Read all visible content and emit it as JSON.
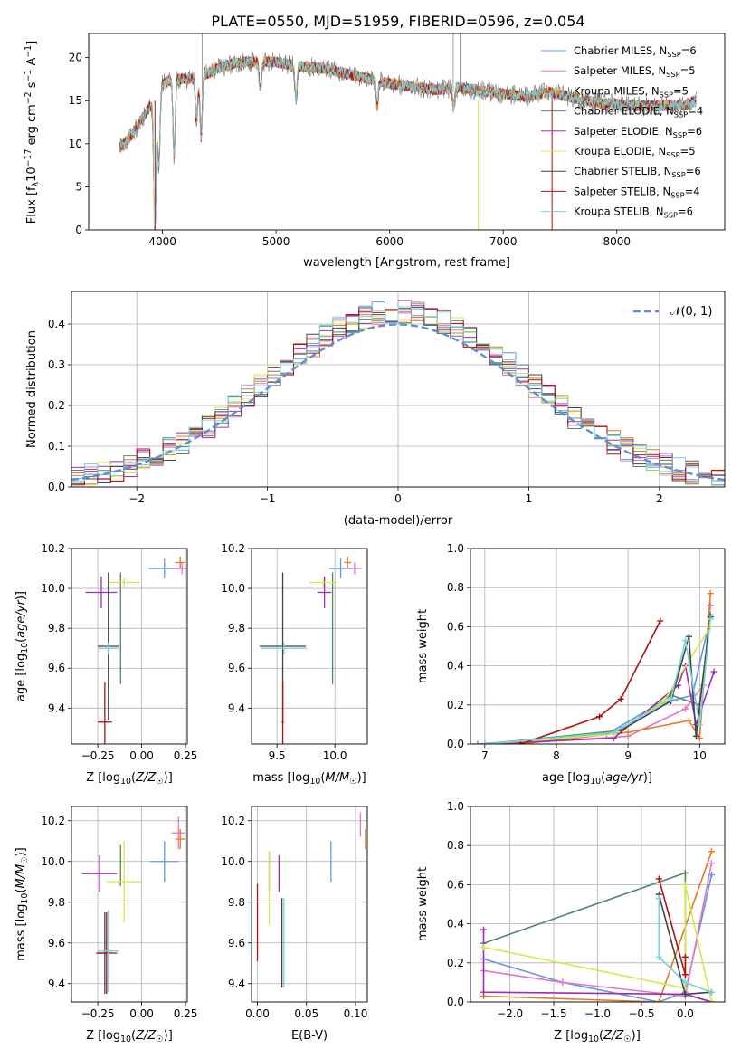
{
  "colors": {
    "Chabrier MILES": "#6495ed",
    "Salpeter MILES": "#e377c2",
    "Kroupa MILES": "#e07b27",
    "Chabrier ELODIE": "#4f8a5f",
    "Salpeter ELODIE": "#9b30b4",
    "Kroupa ELODIE": "#d4e84a",
    "Chabrier STELIB": "#444444",
    "Salpeter STELIB": "#b01010",
    "Kroupa STELIB": "#74d3dc",
    "normal": "#5b8fd6"
  },
  "chart_data": [
    {
      "id": "spectrum",
      "type": "line",
      "title": "PLATE=0550, MJD=51959, FIBERID=0596, z=0.054",
      "xlabel": "wavelength [Angstrom, rest frame]",
      "ylabel": "Flux [f_λ10^-17 erg cm^-2 s^-1 A^-1]",
      "xlim": [
        3350,
        8950
      ],
      "ylim": [
        0,
        22.8
      ],
      "xticks": [
        4000,
        5000,
        6000,
        7000,
        8000
      ],
      "yticks": [
        0,
        5,
        10,
        15,
        20
      ],
      "grid": false,
      "legend_position": "top-right",
      "legend": [
        {
          "name": "Chabrier MILES, N_SSP=6"
        },
        {
          "name": "Salpeter MILES, N_SSP=5"
        },
        {
          "name": "Kroupa MILES, N_SSP=5"
        },
        {
          "name": "Chabrier ELODIE, N_SSP=4"
        },
        {
          "name": "Salpeter ELODIE, N_SSP=6"
        },
        {
          "name": "Kroupa ELODIE, N_SSP=5"
        },
        {
          "name": "Chabrier STELIB, N_SSP=6"
        },
        {
          "name": "Salpeter STELIB, N_SSP=4"
        },
        {
          "name": "Kroupa STELIB, N_SSP=6"
        }
      ],
      "continuum": {
        "x": [
          3620,
          3700,
          3800,
          3900,
          3950,
          4000,
          4100,
          4200,
          4300,
          4400,
          4500,
          4600,
          4700,
          4800,
          4900,
          5000,
          5200,
          5400,
          5600,
          5800,
          6000,
          6200,
          6400,
          6600,
          6800,
          7000,
          7200,
          7400,
          7600,
          7800,
          8000,
          8200,
          8400,
          8600,
          8700
        ],
        "y": [
          9.5,
          10.5,
          12.5,
          14.5,
          14.5,
          17.0,
          17.5,
          17.5,
          17.5,
          18.2,
          18.8,
          19.2,
          19.5,
          19.5,
          19.5,
          19.5,
          19.0,
          18.8,
          18.2,
          17.6,
          17.0,
          16.6,
          16.3,
          16.5,
          16.2,
          15.8,
          15.5,
          16.0,
          15.4,
          14.8,
          14.6,
          14.4,
          14.4,
          14.5,
          15.0
        ]
      },
      "absorption_lines": [
        {
          "x": 3933,
          "depth": 14.5
        },
        {
          "x": 3968,
          "depth": 8.0
        },
        {
          "x": 4102,
          "depth": 9.0
        },
        {
          "x": 4300,
          "depth": 5.0
        },
        {
          "x": 4340,
          "depth": 7.0
        },
        {
          "x": 4861,
          "depth": 3.5
        },
        {
          "x": 5175,
          "depth": 4.0
        },
        {
          "x": 5890,
          "depth": 3.0
        },
        {
          "x": 6563,
          "depth": 2.0
        }
      ]
    },
    {
      "id": "residuals",
      "type": "step",
      "xlabel": "(data-model)/error",
      "ylabel": "Normed distribution",
      "xlim": [
        -2.5,
        2.5
      ],
      "ylim": [
        0,
        0.48
      ],
      "xticks": [
        -2,
        -1,
        0,
        1,
        2
      ],
      "yticks": [
        0.0,
        0.1,
        0.2,
        0.3,
        0.4
      ],
      "grid": true,
      "legend_position": "top-right",
      "legend": [
        {
          "name": "𝒩(0, 1)"
        }
      ],
      "bin_width": 0.1
    },
    {
      "id": "age-vs-Z",
      "type": "errorbar",
      "xlabel": "Z [log10(Z/Z☉)]",
      "ylabel": "age [log10(age/yr)]",
      "xlim": [
        -0.4,
        0.26
      ],
      "ylim": [
        9.22,
        10.2
      ],
      "xticks": [
        -0.25,
        0.0,
        0.25
      ],
      "yticks": [
        9.4,
        9.6,
        9.8,
        10.0,
        10.2
      ],
      "grid": true,
      "points": [
        {
          "model": "Chabrier MILES",
          "x": 0.13,
          "y": 10.1,
          "xerr": 0.09,
          "yerr": 0.05
        },
        {
          "model": "Salpeter MILES",
          "x": 0.23,
          "y": 10.1,
          "xerr": 0.05,
          "yerr": 0.03
        },
        {
          "model": "Kroupa MILES",
          "x": 0.22,
          "y": 10.13,
          "xerr": 0.03,
          "yerr": 0.03
        },
        {
          "model": "Chabrier ELODIE",
          "x": -0.12,
          "y": 9.8,
          "xerr": 0.0,
          "yerr": 0.28
        },
        {
          "model": "Salpeter ELODIE",
          "x": -0.23,
          "y": 9.98,
          "xerr": 0.09,
          "yerr": 0.08
        },
        {
          "model": "Kroupa ELODIE",
          "x": -0.1,
          "y": 10.03,
          "xerr": 0.09,
          "yerr": 0.02
        },
        {
          "model": "Chabrier STELIB",
          "x": -0.19,
          "y": 9.71,
          "xerr": 0.06,
          "yerr": 0.37
        },
        {
          "model": "Salpeter STELIB",
          "x": -0.21,
          "y": 9.33,
          "xerr": 0.04,
          "yerr": 0.2
        },
        {
          "model": "Kroupa STELIB",
          "x": -0.19,
          "y": 9.7,
          "xerr": 0.06,
          "yerr": 0.03
        }
      ]
    },
    {
      "id": "age-vs-mass",
      "type": "errorbar",
      "xlabel": "mass [log10(M/M☉)]",
      "xlim": [
        9.28,
        10.28
      ],
      "ylim": [
        9.22,
        10.2
      ],
      "xticks": [
        9.5,
        10.0
      ],
      "yticks": [
        9.4,
        9.6,
        9.8,
        10.0,
        10.2
      ],
      "grid": true,
      "points": [
        {
          "model": "Chabrier MILES",
          "x": 10.05,
          "y": 10.1,
          "xerr": 0.1,
          "yerr": 0.05
        },
        {
          "model": "Salpeter MILES",
          "x": 10.17,
          "y": 10.1,
          "xerr": 0.06,
          "yerr": 0.03
        },
        {
          "model": "Kroupa MILES",
          "x": 10.11,
          "y": 10.13,
          "xerr": 0.03,
          "yerr": 0.03
        },
        {
          "model": "Chabrier ELODIE",
          "x": 9.98,
          "y": 9.8,
          "xerr": 0.0,
          "yerr": 0.28
        },
        {
          "model": "Salpeter ELODIE",
          "x": 9.91,
          "y": 9.98,
          "xerr": 0.06,
          "yerr": 0.08
        },
        {
          "model": "Kroupa ELODIE",
          "x": 9.9,
          "y": 10.03,
          "xerr": 0.12,
          "yerr": 0.02
        },
        {
          "model": "Chabrier STELIB",
          "x": 9.55,
          "y": 9.71,
          "xerr": 0.2,
          "yerr": 0.37
        },
        {
          "model": "Salpeter STELIB",
          "x": 9.55,
          "y": 9.33,
          "xerr": 0.01,
          "yerr": 0.2
        },
        {
          "model": "Kroupa STELIB",
          "x": 9.56,
          "y": 9.7,
          "xerr": 0.2,
          "yerr": 0.03
        }
      ]
    },
    {
      "id": "weight-vs-age",
      "type": "line",
      "xlabel": "age [log10(age/yr)]",
      "ylabel": "mass weight",
      "xlim": [
        6.8,
        10.35
      ],
      "ylim": [
        0,
        1.0
      ],
      "xticks": [
        7,
        8,
        9,
        10
      ],
      "yticks": [
        0.0,
        0.2,
        0.4,
        0.6,
        0.8,
        1.0
      ],
      "grid": true,
      "series": [
        {
          "model": "Chabrier MILES",
          "points": [
            [
              6.9,
              0.0
            ],
            [
              8.7,
              0.05
            ],
            [
              9.4,
              0.2
            ],
            [
              9.9,
              0.25
            ],
            [
              10.15,
              0.65
            ]
          ]
        },
        {
          "model": "Salpeter MILES",
          "points": [
            [
              7.3,
              0.0
            ],
            [
              9.0,
              0.04
            ],
            [
              9.8,
              0.18
            ],
            [
              10.05,
              0.3
            ],
            [
              10.15,
              0.71
            ]
          ]
        },
        {
          "model": "Kroupa MILES",
          "points": [
            [
              7.5,
              0.0
            ],
            [
              9.0,
              0.06
            ],
            [
              9.85,
              0.12
            ],
            [
              10.0,
              0.03
            ],
            [
              10.15,
              0.77
            ]
          ]
        },
        {
          "model": "Chabrier ELODIE",
          "points": [
            [
              7.0,
              0.0
            ],
            [
              8.9,
              0.07
            ],
            [
              9.6,
              0.25
            ],
            [
              10.0,
              0.2
            ],
            [
              10.15,
              0.66
            ]
          ]
        },
        {
          "model": "Salpeter ELODIE",
          "points": [
            [
              7.0,
              0.0
            ],
            [
              8.8,
              0.03
            ],
            [
              9.7,
              0.3
            ],
            [
              9.8,
              0.4
            ],
            [
              9.95,
              0.1
            ],
            [
              10.2,
              0.37
            ]
          ]
        },
        {
          "model": "Kroupa ELODIE",
          "points": [
            [
              7.0,
              0.0
            ],
            [
              8.8,
              0.05
            ],
            [
              9.5,
              0.22
            ],
            [
              10.15,
              0.6
            ]
          ]
        },
        {
          "model": "Chabrier STELIB",
          "points": [
            [
              8.9,
              0.07
            ],
            [
              9.6,
              0.22
            ],
            [
              9.85,
              0.55
            ],
            [
              9.95,
              0.04
            ],
            [
              10.15,
              0.65
            ]
          ]
        },
        {
          "model": "Salpeter STELIB",
          "points": [
            [
              7.5,
              0.0
            ],
            [
              8.6,
              0.14
            ],
            [
              8.9,
              0.23
            ],
            [
              9.45,
              0.63
            ]
          ]
        },
        {
          "model": "Kroupa STELIB",
          "points": [
            [
              7.0,
              0.0
            ],
            [
              8.8,
              0.06
            ],
            [
              9.6,
              0.23
            ],
            [
              9.8,
              0.53
            ],
            [
              10.0,
              0.1
            ],
            [
              10.15,
              0.64
            ]
          ]
        }
      ]
    },
    {
      "id": "mass-vs-Z",
      "type": "errorbar",
      "xlabel": "Z [log10(Z/Z☉)]",
      "ylabel": "mass [log10(M/M☉)]",
      "xlim": [
        -0.4,
        0.26
      ],
      "ylim": [
        9.31,
        10.27
      ],
      "xticks": [
        -0.25,
        0.0,
        0.25
      ],
      "yticks": [
        9.4,
        9.6,
        9.8,
        10.0,
        10.2
      ],
      "grid": true,
      "points": [
        {
          "model": "Chabrier MILES",
          "x": 0.13,
          "y": 10.0,
          "xerr": 0.08,
          "yerr": 0.1
        },
        {
          "model": "Salpeter MILES",
          "x": 0.21,
          "y": 10.14,
          "xerr": 0.04,
          "yerr": 0.08
        },
        {
          "model": "Kroupa MILES",
          "x": 0.22,
          "y": 10.11,
          "xerr": 0.03,
          "yerr": 0.05
        },
        {
          "model": "Chabrier ELODIE",
          "x": -0.12,
          "y": 9.98,
          "xerr": 0.0,
          "yerr": 0.1
        },
        {
          "model": "Salpeter ELODIE",
          "x": -0.24,
          "y": 9.94,
          "xerr": 0.1,
          "yerr": 0.09
        },
        {
          "model": "Kroupa ELODIE",
          "x": -0.1,
          "y": 9.9,
          "xerr": 0.1,
          "yerr": 0.2
        },
        {
          "model": "Chabrier STELIB",
          "x": -0.21,
          "y": 9.55,
          "xerr": 0.04,
          "yerr": 0.2
        },
        {
          "model": "Salpeter STELIB",
          "x": -0.2,
          "y": 9.55,
          "xerr": 0.06,
          "yerr": 0.2
        },
        {
          "model": "Kroupa STELIB",
          "x": -0.19,
          "y": 9.56,
          "xerr": 0.06,
          "yerr": 0.2
        }
      ]
    },
    {
      "id": "mass-vs-EBV",
      "type": "errorbar",
      "xlabel": "E(B-V)",
      "xlim": [
        -0.006,
        0.112
      ],
      "ylim": [
        9.31,
        10.27
      ],
      "xticks": [
        0.0,
        0.05,
        0.1
      ],
      "yticks": [
        9.4,
        9.6,
        9.8,
        10.0,
        10.2
      ],
      "grid": true,
      "points": [
        {
          "model": "Chabrier MILES",
          "x": 0.075,
          "y": 10.0,
          "yerr": 0.1
        },
        {
          "model": "Salpeter MILES",
          "x": 0.105,
          "y": 10.18,
          "yerr": 0.06
        },
        {
          "model": "Kroupa MILES",
          "x": 0.11,
          "y": 10.11,
          "yerr": 0.05
        },
        {
          "model": "Chabrier ELODIE",
          "x": 0.012,
          "y": 9.95,
          "yerr": 0.1
        },
        {
          "model": "Salpeter ELODIE",
          "x": 0.022,
          "y": 9.94,
          "yerr": 0.09
        },
        {
          "model": "Kroupa ELODIE",
          "x": 0.012,
          "y": 9.87,
          "yerr": 0.18
        },
        {
          "model": "Chabrier STELIB",
          "x": 0.025,
          "y": 9.6,
          "yerr": 0.22
        },
        {
          "model": "Salpeter STELIB",
          "x": 0.0,
          "y": 9.7,
          "yerr": 0.19
        },
        {
          "model": "Kroupa STELIB",
          "x": 0.027,
          "y": 9.6,
          "yerr": 0.22
        }
      ]
    },
    {
      "id": "weight-vs-Z",
      "type": "line",
      "xlabel": "Z [log10(Z/Z☉)]",
      "ylabel": "mass weight",
      "xlim": [
        -2.45,
        0.45
      ],
      "ylim": [
        0,
        1.0
      ],
      "xticks": [
        -2.0,
        -1.5,
        -1.0,
        -0.5,
        0.0
      ],
      "yticks": [
        0.0,
        0.2,
        0.4,
        0.6,
        0.8,
        1.0
      ],
      "grid": true,
      "series": [
        {
          "model": "Chabrier MILES",
          "points": [
            [
              -2.3,
              0.22
            ],
            [
              -1.4,
              0.1
            ],
            [
              -0.3,
              0.0
            ],
            [
              0.0,
              0.05
            ],
            [
              0.3,
              0.65
            ]
          ]
        },
        {
          "model": "Salpeter MILES",
          "points": [
            [
              -2.3,
              0.16
            ],
            [
              -1.4,
              0.1
            ],
            [
              0.0,
              0.03
            ],
            [
              0.3,
              0.71
            ]
          ]
        },
        {
          "model": "Kroupa MILES",
          "points": [
            [
              -2.3,
              0.03
            ],
            [
              -0.3,
              0.0
            ],
            [
              0.3,
              0.77
            ]
          ]
        },
        {
          "model": "Chabrier ELODIE",
          "points": [
            [
              -2.3,
              0.3
            ],
            [
              0.0,
              0.66
            ],
            [
              0.0,
              0.04
            ],
            [
              0.3,
              0.0
            ]
          ]
        },
        {
          "model": "Salpeter ELODIE",
          "points": [
            [
              -2.3,
              0.37
            ],
            [
              -2.3,
              0.05
            ],
            [
              0.0,
              0.04
            ],
            [
              0.3,
              0.0
            ]
          ]
        },
        {
          "model": "Kroupa ELODIE",
          "points": [
            [
              -2.3,
              0.28
            ],
            [
              0.0,
              0.07
            ],
            [
              0.0,
              0.6
            ],
            [
              0.3,
              0.0
            ]
          ]
        },
        {
          "model": "Chabrier STELIB",
          "points": [
            [
              -0.3,
              0.55
            ],
            [
              0.0,
              0.04
            ],
            [
              0.3,
              0.05
            ]
          ]
        },
        {
          "model": "Salpeter STELIB",
          "points": [
            [
              -0.3,
              0.63
            ],
            [
              0.0,
              0.14
            ],
            [
              0.0,
              0.23
            ]
          ]
        },
        {
          "model": "Kroupa STELIB",
          "points": [
            [
              -0.3,
              0.53
            ],
            [
              -0.3,
              0.23
            ],
            [
              0.0,
              0.1
            ],
            [
              0.3,
              0.05
            ]
          ]
        }
      ]
    }
  ]
}
